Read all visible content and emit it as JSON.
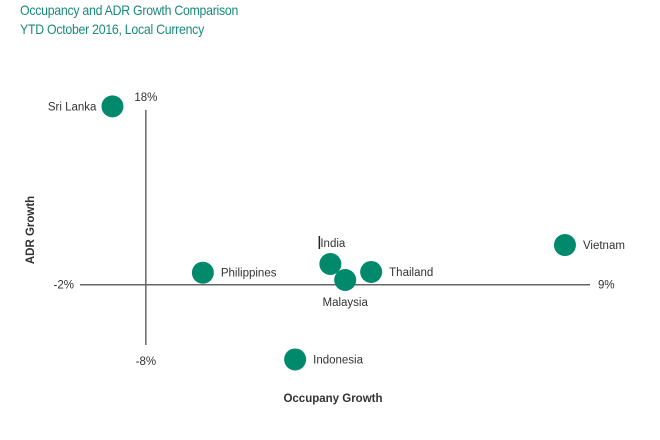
{
  "chart_data": {
    "type": "scatter",
    "title": "Occupancy and ADR Growth Comparison",
    "subtitle": "YTD October 2016, Local Currency",
    "xlabel": "Occupany Growth",
    "ylabel": "ADR Growth",
    "xlim": [
      -2,
      9
    ],
    "ylim": [
      -8,
      18
    ],
    "axis_crossing": {
      "x": -0.58,
      "y": -1.33
    },
    "x_tick_labels": {
      "min": "-2%",
      "max": "9%"
    },
    "y_tick_labels": {
      "min": "-8%",
      "max": "18%"
    },
    "grid": false,
    "marker_color": "#00896b",
    "title_color": "#1a8a7a",
    "points": [
      {
        "label": "Sri Lanka",
        "x": -1.3,
        "y": 18.4,
        "label_pos": "left"
      },
      {
        "label": "Philippines",
        "x": 0.65,
        "y": 0.0,
        "label_pos": "right"
      },
      {
        "label": "India",
        "x": 3.4,
        "y": 0.96,
        "label_pos": "top"
      },
      {
        "label": "Malaysia",
        "x": 3.72,
        "y": -0.81,
        "label_pos": "bottom"
      },
      {
        "label": "Thailand",
        "x": 4.28,
        "y": 0.08,
        "label_pos": "right"
      },
      {
        "label": "Vietnam",
        "x": 8.46,
        "y": 3.06,
        "label_pos": "right"
      },
      {
        "label": "Indonesia",
        "x": 2.64,
        "y": -9.6,
        "label_pos": "right"
      }
    ]
  }
}
